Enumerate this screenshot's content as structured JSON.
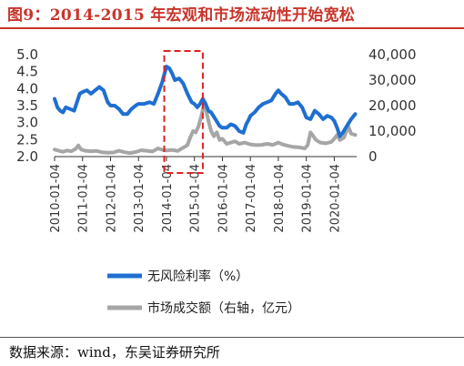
{
  "title": "图9：2014-2015 年宏观和市场流动性开始宽松",
  "source": "数据来源：wind，东吴证券研究所",
  "chart_data": {
    "type": "line",
    "title": "图9：2014-2015 年宏观和市场流动性开始宽松",
    "x_tick_labels": [
      "2010-01-04",
      "2011-01-04",
      "2012-01-04",
      "2013-01-04",
      "2014-01-04",
      "2015-01-04",
      "2016-01-04",
      "2017-01-04",
      "2018-01-04",
      "2019-01-04",
      "2020-01-04"
    ],
    "x_range": [
      2010.0,
      2020.8
    ],
    "y_left": {
      "ticks": [
        "2.0",
        "2.5",
        "3.0",
        "3.5",
        "4.0",
        "4.5",
        "5.0"
      ],
      "range": [
        2.0,
        5.0
      ]
    },
    "y_right": {
      "ticks": [
        "0",
        "10,000",
        "20,000",
        "30,000",
        "40,000"
      ],
      "range": [
        0,
        40000
      ]
    },
    "series": [
      {
        "name": "无风险利率（%）",
        "axis": "left",
        "color": "#1f6fd1",
        "points": [
          [
            2010.0,
            3.7
          ],
          [
            2010.1,
            3.45
          ],
          [
            2010.2,
            3.35
          ],
          [
            2010.3,
            3.3
          ],
          [
            2010.4,
            3.45
          ],
          [
            2010.55,
            3.4
          ],
          [
            2010.7,
            3.35
          ],
          [
            2010.8,
            3.6
          ],
          [
            2010.9,
            3.85
          ],
          [
            2011.0,
            3.9
          ],
          [
            2011.15,
            3.95
          ],
          [
            2011.3,
            3.85
          ],
          [
            2011.45,
            3.95
          ],
          [
            2011.6,
            4.05
          ],
          [
            2011.75,
            3.95
          ],
          [
            2011.9,
            3.6
          ],
          [
            2012.0,
            3.5
          ],
          [
            2012.15,
            3.5
          ],
          [
            2012.3,
            3.4
          ],
          [
            2012.45,
            3.25
          ],
          [
            2012.6,
            3.25
          ],
          [
            2012.75,
            3.4
          ],
          [
            2012.9,
            3.5
          ],
          [
            2013.0,
            3.55
          ],
          [
            2013.2,
            3.55
          ],
          [
            2013.4,
            3.6
          ],
          [
            2013.55,
            3.55
          ],
          [
            2013.7,
            3.85
          ],
          [
            2013.85,
            4.2
          ],
          [
            2013.95,
            4.5
          ],
          [
            2014.0,
            4.65
          ],
          [
            2014.1,
            4.6
          ],
          [
            2014.2,
            4.45
          ],
          [
            2014.3,
            4.25
          ],
          [
            2014.45,
            4.3
          ],
          [
            2014.6,
            4.15
          ],
          [
            2014.75,
            3.85
          ],
          [
            2014.9,
            3.6
          ],
          [
            2015.0,
            3.55
          ],
          [
            2015.1,
            3.45
          ],
          [
            2015.2,
            3.55
          ],
          [
            2015.3,
            3.7
          ],
          [
            2015.4,
            3.55
          ],
          [
            2015.5,
            3.35
          ],
          [
            2015.6,
            3.3
          ],
          [
            2015.75,
            3.1
          ],
          [
            2015.9,
            2.9
          ],
          [
            2016.0,
            2.85
          ],
          [
            2016.15,
            2.85
          ],
          [
            2016.3,
            2.95
          ],
          [
            2016.45,
            2.9
          ],
          [
            2016.6,
            2.75
          ],
          [
            2016.75,
            2.7
          ],
          [
            2016.85,
            2.95
          ],
          [
            2016.95,
            3.1
          ],
          [
            2017.0,
            3.2
          ],
          [
            2017.15,
            3.3
          ],
          [
            2017.3,
            3.45
          ],
          [
            2017.45,
            3.55
          ],
          [
            2017.6,
            3.6
          ],
          [
            2017.75,
            3.65
          ],
          [
            2017.9,
            3.85
          ],
          [
            2018.0,
            3.95
          ],
          [
            2018.1,
            3.85
          ],
          [
            2018.25,
            3.75
          ],
          [
            2018.4,
            3.55
          ],
          [
            2018.55,
            3.55
          ],
          [
            2018.7,
            3.6
          ],
          [
            2018.85,
            3.45
          ],
          [
            2019.0,
            3.15
          ],
          [
            2019.15,
            3.1
          ],
          [
            2019.3,
            3.35
          ],
          [
            2019.45,
            3.25
          ],
          [
            2019.6,
            3.1
          ],
          [
            2019.75,
            3.2
          ],
          [
            2019.9,
            3.15
          ],
          [
            2020.0,
            3.05
          ],
          [
            2020.1,
            2.85
          ],
          [
            2020.2,
            2.6
          ],
          [
            2020.3,
            2.7
          ],
          [
            2020.45,
            2.9
          ],
          [
            2020.6,
            3.1
          ],
          [
            2020.75,
            3.25
          ]
        ]
      },
      {
        "name": "市场成交额（右轴，亿元）",
        "axis": "right",
        "color": "#a6a6a6",
        "points": [
          [
            2010.0,
            2800
          ],
          [
            2010.15,
            2300
          ],
          [
            2010.3,
            1900
          ],
          [
            2010.45,
            2400
          ],
          [
            2010.6,
            2100
          ],
          [
            2010.75,
            3000
          ],
          [
            2010.85,
            4400
          ],
          [
            2010.95,
            2800
          ],
          [
            2011.1,
            2300
          ],
          [
            2011.3,
            2100
          ],
          [
            2011.5,
            2200
          ],
          [
            2011.7,
            1700
          ],
          [
            2011.9,
            1500
          ],
          [
            2012.1,
            1600
          ],
          [
            2012.3,
            2300
          ],
          [
            2012.5,
            1700
          ],
          [
            2012.7,
            1400
          ],
          [
            2012.9,
            1800
          ],
          [
            2013.1,
            2500
          ],
          [
            2013.3,
            2300
          ],
          [
            2013.5,
            2000
          ],
          [
            2013.7,
            3200
          ],
          [
            2013.9,
            2500
          ],
          [
            2014.0,
            2400
          ],
          [
            2014.2,
            2600
          ],
          [
            2014.4,
            2200
          ],
          [
            2014.6,
            3500
          ],
          [
            2014.75,
            4500
          ],
          [
            2014.85,
            7500
          ],
          [
            2014.95,
            10000
          ],
          [
            2015.05,
            9500
          ],
          [
            2015.15,
            12000
          ],
          [
            2015.25,
            16000
          ],
          [
            2015.35,
            21000
          ],
          [
            2015.42,
            18000
          ],
          [
            2015.5,
            14000
          ],
          [
            2015.6,
            10000
          ],
          [
            2015.7,
            8000
          ],
          [
            2015.8,
            9500
          ],
          [
            2015.9,
            6500
          ],
          [
            2016.0,
            7000
          ],
          [
            2016.15,
            5000
          ],
          [
            2016.3,
            5500
          ],
          [
            2016.45,
            6000
          ],
          [
            2016.6,
            5000
          ],
          [
            2016.8,
            5500
          ],
          [
            2017.0,
            4800
          ],
          [
            2017.2,
            4500
          ],
          [
            2017.4,
            4600
          ],
          [
            2017.6,
            5000
          ],
          [
            2017.8,
            4600
          ],
          [
            2018.0,
            5500
          ],
          [
            2018.15,
            4800
          ],
          [
            2018.35,
            4200
          ],
          [
            2018.55,
            3800
          ],
          [
            2018.75,
            3600
          ],
          [
            2018.95,
            3200
          ],
          [
            2019.05,
            4500
          ],
          [
            2019.15,
            9500
          ],
          [
            2019.25,
            8000
          ],
          [
            2019.35,
            6500
          ],
          [
            2019.5,
            5500
          ],
          [
            2019.7,
            5200
          ],
          [
            2019.9,
            5800
          ],
          [
            2020.0,
            7000
          ],
          [
            2020.1,
            8500
          ],
          [
            2020.2,
            6500
          ],
          [
            2020.35,
            7500
          ],
          [
            2020.5,
            12000
          ],
          [
            2020.6,
            9000
          ],
          [
            2020.75,
            8500
          ]
        ]
      }
    ],
    "annotation": {
      "type": "dashed-rect",
      "x_range": [
        2013.92,
        2015.3
      ],
      "color": "#e02020"
    },
    "legend_position": "bottom",
    "grid": false
  }
}
